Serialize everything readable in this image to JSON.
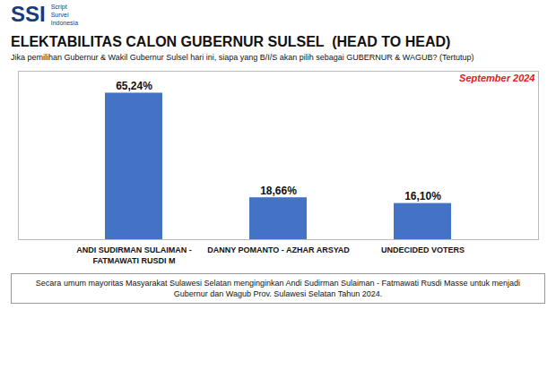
{
  "chart_data": {
    "type": "bar",
    "title": "ELEKTABILITAS CALON GUBERNUR SULSEL  (HEAD TO HEAD)",
    "subtitle": "Jika pemilihan Gubernur & Wakil Gubernur Sulsel hari ini, siapa yang B/I/S akan pilih sebagai GUBERNUR & WAGUB? (Tertutup)",
    "caption": "Secara umum mayoritas Masyarakat Sulawesi Selatan menginginkan Andi Sudirman Sulaiman - Fatmawati Rusdi Masse untuk menjadi Gubernur dan Wagub Prov. Sulawesi Selatan Tahun 2024.",
    "annotations": [
      {
        "text": "SSI",
        "color": "#1a3a7e"
      },
      {
        "text": "Script\nSurvei\nIndonesia",
        "color": "#1a3a7e"
      },
      {
        "text": "September 2024",
        "color": "#E02020"
      }
    ],
    "categories": [
      "ANDI SUDIRMAN SULAIMAN -\nFATMAWATI RUSDI M",
      "DANNY POMANTO - AZHAR ARSYAD",
      "UNDECIDED VOTERS"
    ],
    "values": [
      65.24,
      18.66,
      16.1
    ],
    "value_labels": [
      "65,24%",
      "18,66%",
      "16,10%"
    ],
    "color": "#4472C4",
    "ylim": [
      0,
      75
    ],
    "data_labels": true,
    "tick_labels": "x",
    "grid": false
  }
}
